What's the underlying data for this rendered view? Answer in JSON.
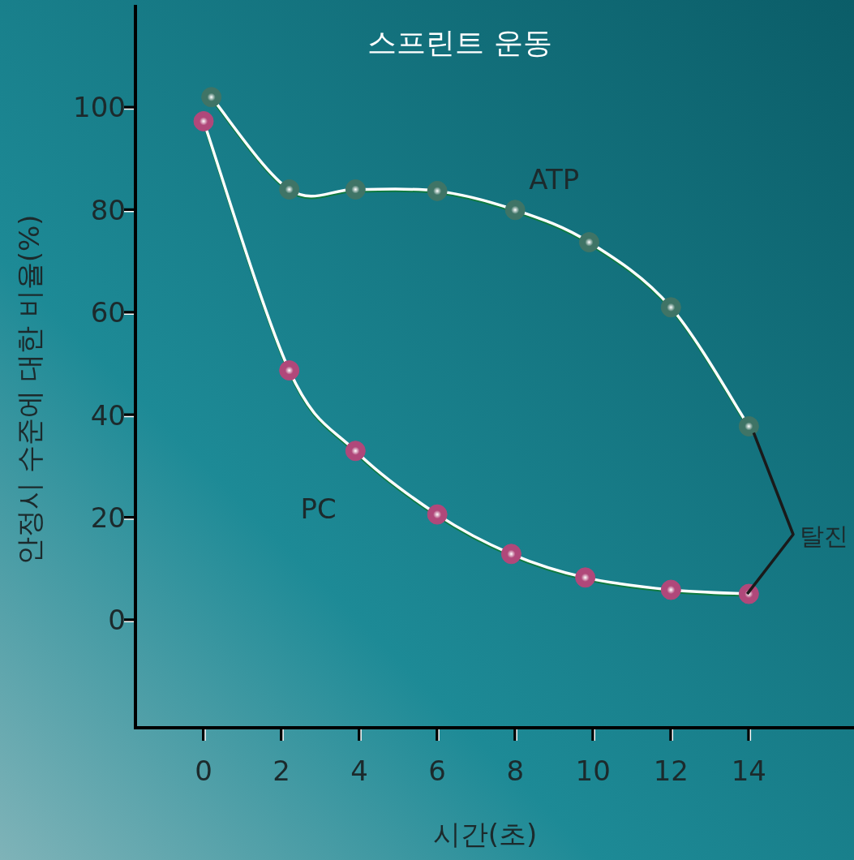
{
  "chart_data": {
    "type": "line",
    "title": "스프린트 운동",
    "xlabel": "시간(초)",
    "ylabel": "안정시 수준에 대한 비율(%)",
    "series": [
      {
        "name": "ATP",
        "color": "#3f7466",
        "x": [
          0.2,
          2.2,
          3.9,
          6,
          8,
          9.9,
          12,
          14
        ],
        "values": [
          102,
          84,
          84,
          83.7,
          80,
          73.7,
          61,
          37.8
        ]
      },
      {
        "name": "PC",
        "color": "#b0487a",
        "x": [
          0,
          2.2,
          3.9,
          6,
          7.9,
          9.8,
          12,
          14
        ],
        "values": [
          97.3,
          48.7,
          33,
          20.6,
          12.9,
          8.3,
          5.9,
          5.1
        ]
      }
    ],
    "annotations": [
      "탈진"
    ],
    "xlim": [
      -1.75,
      16.7
    ],
    "ylim": [
      -21,
      120
    ],
    "xticks": [
      0,
      2,
      4,
      6,
      8,
      10,
      12,
      14
    ],
    "yticks": [
      0,
      20,
      40,
      60,
      80,
      100
    ],
    "marker": "circle",
    "line_style": "solid",
    "grid": false,
    "legend": false
  }
}
